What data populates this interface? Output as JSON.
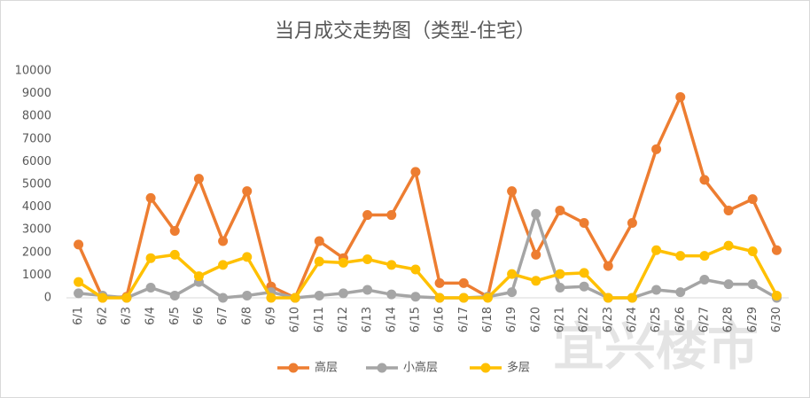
{
  "chart_data": {
    "type": "line",
    "title": "当月成交走势图（类型-住宅）",
    "categories": [
      "6/1",
      "6/2",
      "6/3",
      "6/4",
      "6/5",
      "6/6",
      "6/7",
      "6/8",
      "6/9",
      "6/10",
      "6/11",
      "6/12",
      "6/13",
      "6/14",
      "6/15",
      "6/16",
      "6/17",
      "6/18",
      "6/19",
      "6/20",
      "6/21",
      "6/22",
      "6/23",
      "6/24",
      "6/25",
      "6/26",
      "6/27",
      "6/28",
      "6/29",
      "6/30"
    ],
    "series": [
      {
        "name": "高层",
        "color": "#ed7d31",
        "values": [
          2350,
          0,
          50,
          4400,
          2950,
          5250,
          2500,
          4700,
          500,
          0,
          2500,
          1750,
          3650,
          3650,
          5550,
          650,
          650,
          50,
          4700,
          1900,
          3850,
          3300,
          1400,
          3300,
          6550,
          8850,
          5200,
          3850,
          4350,
          2100
        ]
      },
      {
        "name": "小高层",
        "color": "#a5a5a5",
        "values": [
          200,
          100,
          0,
          450,
          100,
          700,
          0,
          100,
          250,
          0,
          100,
          200,
          350,
          150,
          50,
          0,
          0,
          50,
          250,
          3700,
          450,
          500,
          0,
          0,
          350,
          250,
          800,
          600,
          600,
          0
        ]
      },
      {
        "name": "多层",
        "color": "#ffc000",
        "values": [
          700,
          0,
          0,
          1750,
          1900,
          950,
          1450,
          1800,
          0,
          0,
          1600,
          1550,
          1700,
          1450,
          1250,
          0,
          0,
          0,
          1050,
          750,
          1050,
          1100,
          0,
          0,
          2100,
          1850,
          1850,
          2300,
          2050,
          100
        ]
      }
    ],
    "ylim": [
      0,
      10000
    ],
    "yticks": [
      0,
      1000,
      2000,
      3000,
      4000,
      5000,
      6000,
      7000,
      8000,
      9000,
      10000
    ],
    "grid": false,
    "legend": "bottom",
    "watermark": "宜兴楼市"
  }
}
